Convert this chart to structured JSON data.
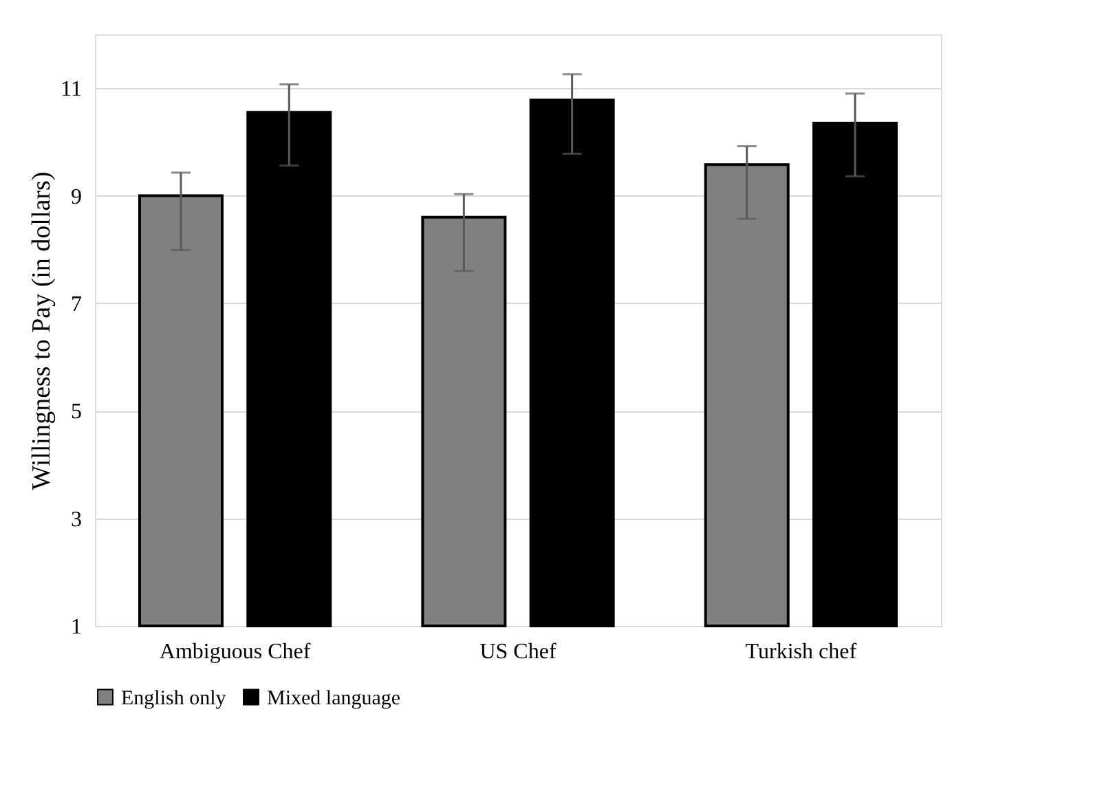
{
  "chart_data": {
    "type": "bar",
    "ylabel": "Willingness to Pay  (in dollars)",
    "categories": [
      "Ambiguous Chef",
      "US Chef",
      "Turkish chef"
    ],
    "series": [
      {
        "name": "English only",
        "color": "#808080",
        "values": [
          9.0,
          8.6,
          9.58
        ],
        "errors": [
          [
            7.99,
            9.43
          ],
          [
            7.6,
            9.03
          ],
          [
            8.57,
            9.92
          ]
        ]
      },
      {
        "name": "Mixed language",
        "color": "#000000",
        "values": [
          10.55,
          10.78,
          10.35
        ],
        "errors": [
          [
            9.56,
            11.07
          ],
          [
            9.78,
            11.26
          ],
          [
            9.36,
            10.9
          ]
        ]
      }
    ],
    "ylim": [
      1,
      12
    ],
    "yticks": [
      1,
      3,
      5,
      7,
      9,
      11
    ],
    "grid": "y",
    "legend": "bottom"
  }
}
